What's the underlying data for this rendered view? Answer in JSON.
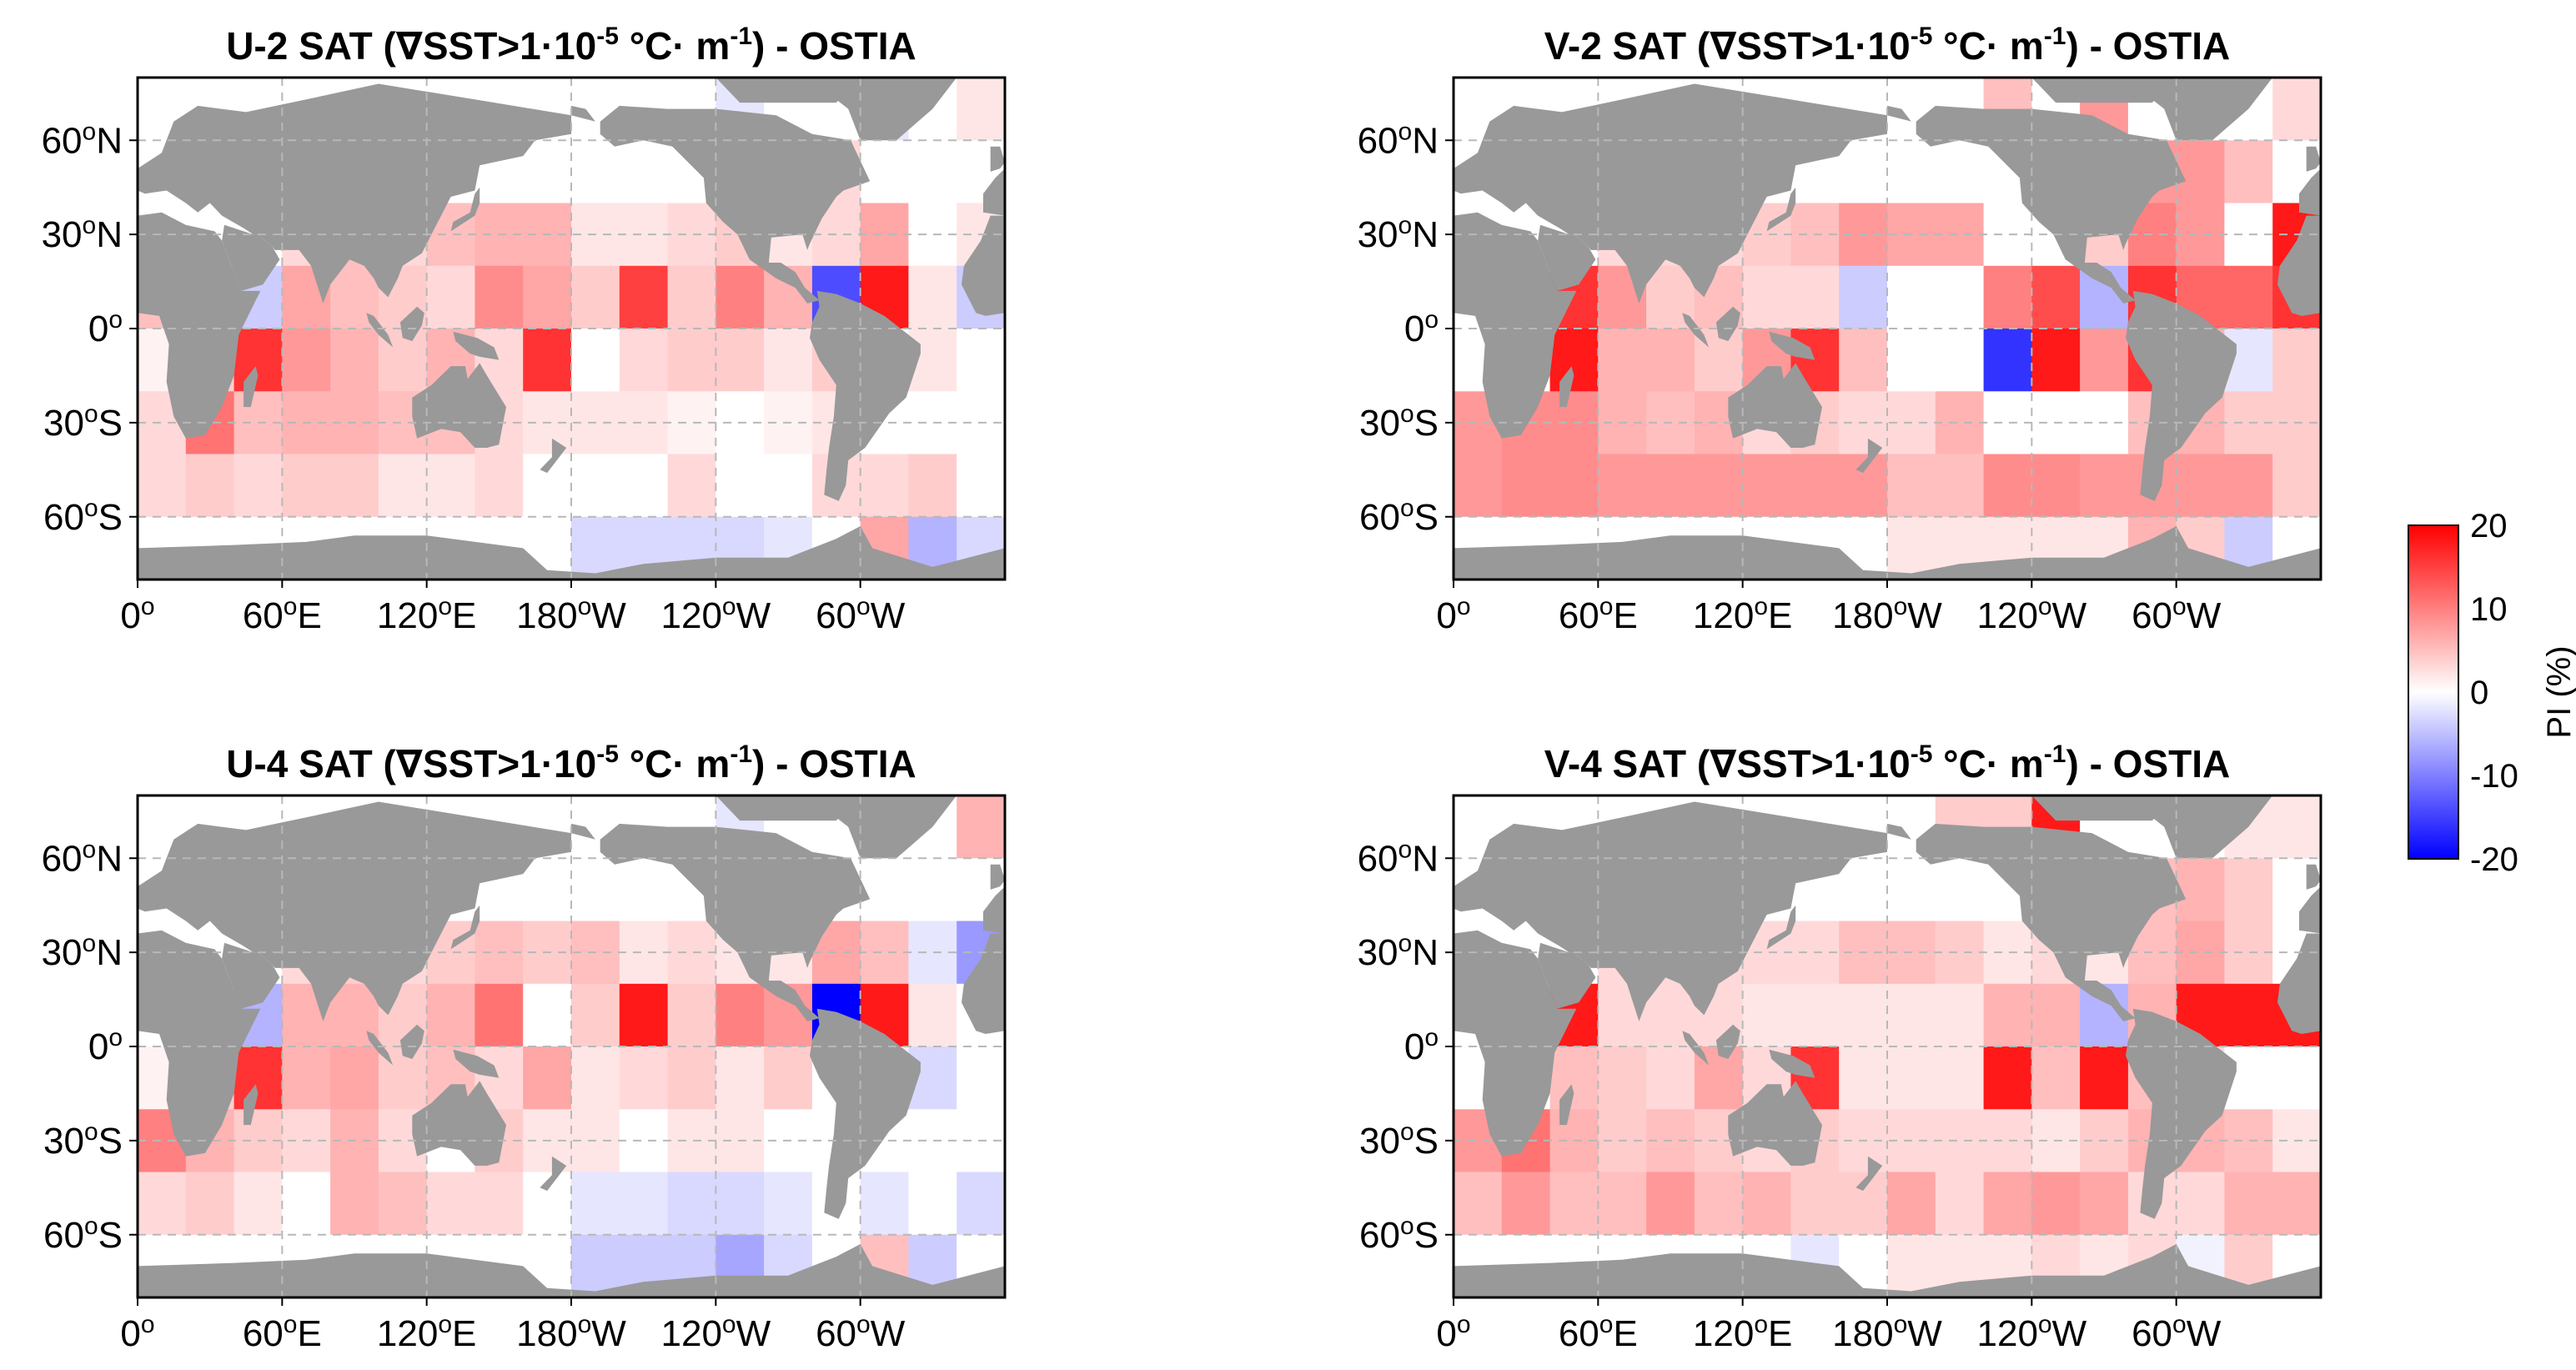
{
  "legend": {
    "title": "PI (%)",
    "ticks": [
      "20",
      "10",
      "0",
      "-10",
      "-20"
    ],
    "range": [
      -20,
      20
    ]
  },
  "axes": {
    "x_tick_labels": [
      {
        "text": "0",
        "sup": "o",
        "suffix": ""
      },
      {
        "text": "60",
        "sup": "o",
        "suffix": "E"
      },
      {
        "text": "120",
        "sup": "o",
        "suffix": "E"
      },
      {
        "text": "180",
        "sup": "o",
        "suffix": "W"
      },
      {
        "text": "120",
        "sup": "o",
        "suffix": "W"
      },
      {
        "text": "60",
        "sup": "o",
        "suffix": "W"
      }
    ],
    "y_tick_labels": [
      {
        "text": "60",
        "sup": "o",
        "suffix": "N"
      },
      {
        "text": "30",
        "sup": "o",
        "suffix": "N"
      },
      {
        "text": "0",
        "sup": "o",
        "suffix": ""
      },
      {
        "text": "30",
        "sup": "o",
        "suffix": "S"
      },
      {
        "text": "60",
        "sup": "o",
        "suffix": "S"
      }
    ]
  },
  "chart_data": [
    {
      "type": "heatmap",
      "title": "U-2 SAT (∇SST>1·10⁻⁵ °C· m⁻¹) - OSTIA",
      "title_parts": {
        "prefix": "U-2 SAT (∇SST>1·10",
        "exp1": "-5",
        "mid": " °C· m",
        "exp2": "-1",
        "suffix": ") - OSTIA"
      },
      "lon_edges_east": [
        0,
        20,
        40,
        60,
        80,
        100,
        120,
        140,
        160,
        180,
        200,
        220,
        240,
        260,
        280,
        300,
        320,
        340,
        360
      ],
      "lat_band_edges": [
        [
          80,
          60
        ],
        [
          60,
          40
        ],
        [
          40,
          20
        ],
        [
          20,
          0
        ],
        [
          0,
          -20
        ],
        [
          -20,
          -40
        ],
        [
          -40,
          -60
        ],
        [
          -60,
          -80
        ]
      ],
      "pi_values": [
        [
          0,
          0,
          0,
          0,
          0,
          0,
          0,
          0,
          0,
          0,
          0,
          0,
          -2,
          0,
          0,
          -2,
          0,
          2
        ],
        [
          0,
          0,
          0,
          0,
          0,
          0,
          0,
          0,
          0,
          0,
          0,
          0,
          0,
          0,
          3,
          0,
          0,
          0
        ],
        [
          0,
          0,
          0,
          3,
          5,
          3,
          5,
          6,
          6,
          2,
          2,
          3,
          4,
          2,
          3,
          7,
          0,
          2
        ],
        [
          5,
          2,
          -4,
          7,
          5,
          4,
          3,
          9,
          7,
          4,
          15,
          4,
          10,
          6,
          -14,
          18,
          2,
          -4
        ],
        [
          1,
          4,
          16,
          8,
          6,
          4,
          6,
          3,
          16,
          0,
          3,
          4,
          4,
          2,
          4,
          0,
          2,
          0
        ],
        [
          3,
          11,
          5,
          6,
          6,
          5,
          5,
          3,
          2,
          2,
          2,
          1,
          0,
          1,
          2,
          0,
          0,
          0
        ],
        [
          3,
          4,
          3,
          4,
          4,
          2,
          2,
          3,
          0,
          0,
          0,
          3,
          0,
          0,
          3,
          3,
          4,
          0
        ],
        [
          0,
          0,
          0,
          0,
          0,
          0,
          0,
          0,
          0,
          -3,
          -3,
          -3,
          -3,
          -2,
          0,
          7,
          -6,
          -3
        ]
      ]
    },
    {
      "type": "heatmap",
      "title": "V-2 SAT (∇SST>1·10⁻⁵ °C· m⁻¹) - OSTIA",
      "title_parts": {
        "prefix": "V-2 SAT (∇SST>1·10",
        "exp1": "-5",
        "mid": " °C· m",
        "exp2": "-1",
        "suffix": ") - OSTIA"
      },
      "lon_edges_east": [
        0,
        20,
        40,
        60,
        80,
        100,
        120,
        140,
        160,
        180,
        200,
        220,
        240,
        260,
        280,
        300,
        320,
        340,
        360
      ],
      "lat_band_edges": [
        [
          80,
          60
        ],
        [
          60,
          40
        ],
        [
          40,
          20
        ],
        [
          20,
          0
        ],
        [
          0,
          -20
        ],
        [
          -20,
          -40
        ],
        [
          -40,
          -60
        ],
        [
          -60,
          -80
        ]
      ],
      "pi_values": [
        [
          0,
          0,
          0,
          0,
          0,
          0,
          0,
          0,
          0,
          0,
          0,
          5,
          0,
          8,
          0,
          0,
          0,
          3
        ],
        [
          0,
          0,
          0,
          0,
          0,
          0,
          0,
          0,
          0,
          0,
          0,
          0,
          0,
          0,
          8,
          8,
          5,
          0
        ],
        [
          0,
          0,
          0,
          3,
          3,
          3,
          4,
          5,
          8,
          7,
          7,
          0,
          0,
          4,
          10,
          8,
          0,
          18
        ],
        [
          0,
          0,
          16,
          8,
          4,
          5,
          3,
          3,
          -4,
          0,
          0,
          10,
          14,
          -6,
          16,
          12,
          12,
          16
        ],
        [
          0,
          0,
          18,
          6,
          6,
          4,
          8,
          16,
          5,
          0,
          0,
          -16,
          18,
          8,
          16,
          6,
          -2,
          4
        ],
        [
          8,
          9,
          9,
          6,
          5,
          6,
          3,
          4,
          3,
          3,
          6,
          0,
          0,
          0,
          5,
          6,
          4,
          4
        ],
        [
          8,
          9,
          9,
          8,
          8,
          8,
          8,
          8,
          8,
          5,
          5,
          9,
          9,
          8,
          8,
          8,
          8,
          4
        ],
        [
          0,
          0,
          0,
          0,
          0,
          0,
          0,
          0,
          0,
          2,
          2,
          2,
          2,
          2,
          6,
          4,
          -4,
          0
        ]
      ]
    },
    {
      "type": "heatmap",
      "title": "U-4 SAT (∇SST>1·10⁻⁵ °C· m⁻¹) - OSTIA",
      "title_parts": {
        "prefix": "U-4 SAT (∇SST>1·10",
        "exp1": "-5",
        "mid": " °C· m",
        "exp2": "-1",
        "suffix": ") - OSTIA"
      },
      "lon_edges_east": [
        0,
        20,
        40,
        60,
        80,
        100,
        120,
        140,
        160,
        180,
        200,
        220,
        240,
        260,
        280,
        300,
        320,
        340,
        360
      ],
      "lat_band_edges": [
        [
          80,
          60
        ],
        [
          60,
          40
        ],
        [
          40,
          20
        ],
        [
          20,
          0
        ],
        [
          0,
          -20
        ],
        [
          -20,
          -40
        ],
        [
          -40,
          -60
        ],
        [
          -60,
          -80
        ]
      ],
      "pi_values": [
        [
          0,
          0,
          0,
          0,
          0,
          0,
          0,
          0,
          0,
          0,
          0,
          0,
          -2,
          0,
          0,
          0,
          0,
          6
        ],
        [
          0,
          0,
          0,
          0,
          0,
          0,
          0,
          0,
          0,
          0,
          0,
          0,
          0,
          0,
          0,
          0,
          0,
          0
        ],
        [
          0,
          0,
          0,
          3,
          4,
          3,
          4,
          5,
          4,
          5,
          2,
          3,
          2,
          2,
          7,
          5,
          -2,
          -8
        ],
        [
          0,
          0,
          -6,
          6,
          6,
          4,
          6,
          11,
          0,
          4,
          18,
          4,
          10,
          8,
          -20,
          18,
          2,
          0
        ],
        [
          1,
          4,
          16,
          6,
          7,
          4,
          5,
          3,
          7,
          2,
          3,
          4,
          2,
          4,
          0,
          1,
          -3,
          0
        ],
        [
          10,
          6,
          4,
          3,
          6,
          3,
          0,
          4,
          2,
          2,
          0,
          2,
          2,
          0,
          0,
          0,
          0,
          0
        ],
        [
          3,
          4,
          2,
          0,
          6,
          5,
          3,
          3,
          0,
          -2,
          -2,
          -3,
          -3,
          -2,
          0,
          -2,
          0,
          -3
        ],
        [
          0,
          0,
          0,
          0,
          0,
          0,
          0,
          0,
          0,
          -4,
          -4,
          -4,
          -7,
          -3,
          0,
          5,
          -4,
          0
        ]
      ]
    },
    {
      "type": "heatmap",
      "title": "V-4 SAT (∇SST>1·10⁻⁵ °C· m⁻¹) - OSTIA",
      "title_parts": {
        "prefix": "V-4 SAT (∇SST>1·10",
        "exp1": "-5",
        "mid": " °C· m",
        "exp2": "-1",
        "suffix": ") - OSTIA"
      },
      "lon_edges_east": [
        0,
        20,
        40,
        60,
        80,
        100,
        120,
        140,
        160,
        180,
        200,
        220,
        240,
        260,
        280,
        300,
        320,
        340,
        360
      ],
      "lat_band_edges": [
        [
          80,
          60
        ],
        [
          60,
          40
        ],
        [
          40,
          20
        ],
        [
          20,
          0
        ],
        [
          0,
          -20
        ],
        [
          -20,
          -40
        ],
        [
          -40,
          -60
        ],
        [
          -60,
          -80
        ]
      ],
      "pi_values": [
        [
          0,
          0,
          0,
          0,
          0,
          0,
          0,
          0,
          0,
          0,
          4,
          4,
          18,
          0,
          0,
          0,
          2,
          2
        ],
        [
          0,
          0,
          0,
          0,
          0,
          0,
          0,
          0,
          0,
          0,
          0,
          0,
          0,
          0,
          5,
          6,
          4,
          0
        ],
        [
          0,
          0,
          0,
          3,
          3,
          3,
          3,
          3,
          5,
          5,
          4,
          2,
          3,
          2,
          5,
          7,
          4,
          0
        ],
        [
          0,
          0,
          18,
          3,
          3,
          3,
          2,
          2,
          2,
          2,
          2,
          6,
          6,
          -6,
          6,
          18,
          18,
          18
        ],
        [
          0,
          0,
          5,
          4,
          3,
          7,
          3,
          16,
          2,
          2,
          2,
          18,
          5,
          18,
          5,
          3,
          0,
          0
        ],
        [
          8,
          11,
          6,
          4,
          5,
          4,
          3,
          4,
          3,
          3,
          3,
          3,
          2,
          4,
          6,
          6,
          5,
          2
        ],
        [
          5,
          8,
          5,
          5,
          8,
          5,
          6,
          4,
          4,
          7,
          3,
          7,
          8,
          7,
          3,
          3,
          6,
          6
        ],
        [
          0,
          0,
          0,
          0,
          0,
          0,
          0,
          -2,
          0,
          2,
          2,
          2,
          3,
          2,
          3,
          -1,
          4,
          0
        ]
      ]
    }
  ]
}
